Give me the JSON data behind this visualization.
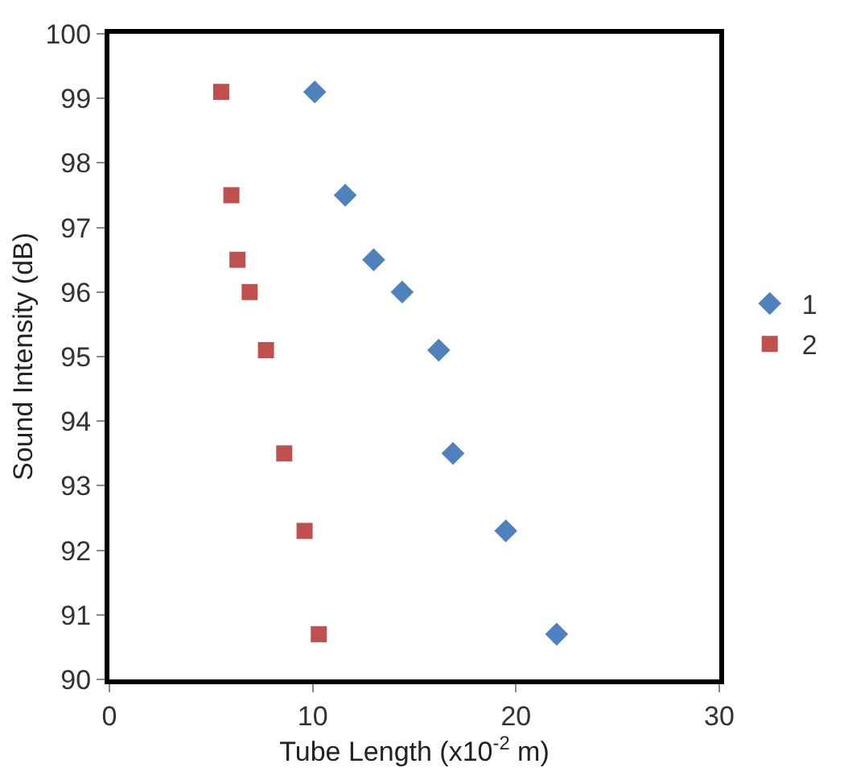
{
  "chart_data": {
    "type": "scatter",
    "xlabel": "Tube Length (x10$^{-2}$ m)",
    "ylabel": "Sound Intensity (dB)",
    "xlim": [
      0,
      30
    ],
    "xticks": [
      0,
      10,
      20,
      30
    ],
    "ylim": [
      90,
      100
    ],
    "yticks": [
      90,
      91,
      92,
      93,
      94,
      95,
      96,
      97,
      98,
      99,
      100
    ],
    "legend": "right",
    "series": [
      {
        "name": "1",
        "color": "#4f81bd",
        "marker": "diamond",
        "x": [
          10.1,
          11.6,
          13.0,
          14.4,
          16.2,
          16.9,
          19.5,
          22.0
        ],
        "values": [
          99.1,
          97.5,
          96.5,
          96.0,
          95.1,
          93.5,
          92.3,
          90.7
        ]
      },
      {
        "name": "2",
        "color": "#c0504d",
        "marker": "square",
        "x": [
          5.5,
          6.0,
          6.3,
          6.9,
          7.7,
          8.6,
          9.6,
          10.3
        ],
        "values": [
          99.1,
          97.5,
          96.5,
          96.0,
          95.1,
          93.5,
          92.3,
          90.7
        ]
      }
    ]
  }
}
